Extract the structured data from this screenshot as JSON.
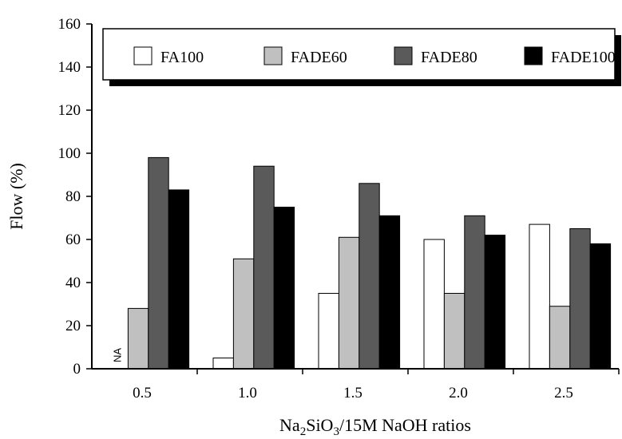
{
  "chart_data": {
    "type": "bar",
    "title": "",
    "xlabel": {
      "prefix": "Na",
      "sub1": "2",
      "mid": "SiO",
      "sub2": "3",
      "suffix": "/15M NaOH ratios"
    },
    "ylabel": "Flow (%)",
    "ylim": [
      0,
      160
    ],
    "yticks": [
      0,
      20,
      40,
      60,
      80,
      100,
      120,
      140,
      160
    ],
    "categories": [
      "0.5",
      "1.0",
      "1.5",
      "2.0",
      "2.5"
    ],
    "series": [
      {
        "name": "FA100",
        "color": "#ffffff",
        "values": [
          null,
          5,
          35,
          60,
          67
        ]
      },
      {
        "name": "FADE60",
        "color": "#c0c0c0",
        "values": [
          28,
          51,
          61,
          35,
          29
        ]
      },
      {
        "name": "FADE80",
        "color": "#5a5a5a",
        "values": [
          98,
          94,
          86,
          71,
          65
        ]
      },
      {
        "name": "FADE100",
        "color": "#000000",
        "values": [
          83,
          75,
          71,
          62,
          58
        ]
      }
    ],
    "missing_label": "NA",
    "legend_position": "top",
    "grid": false
  }
}
